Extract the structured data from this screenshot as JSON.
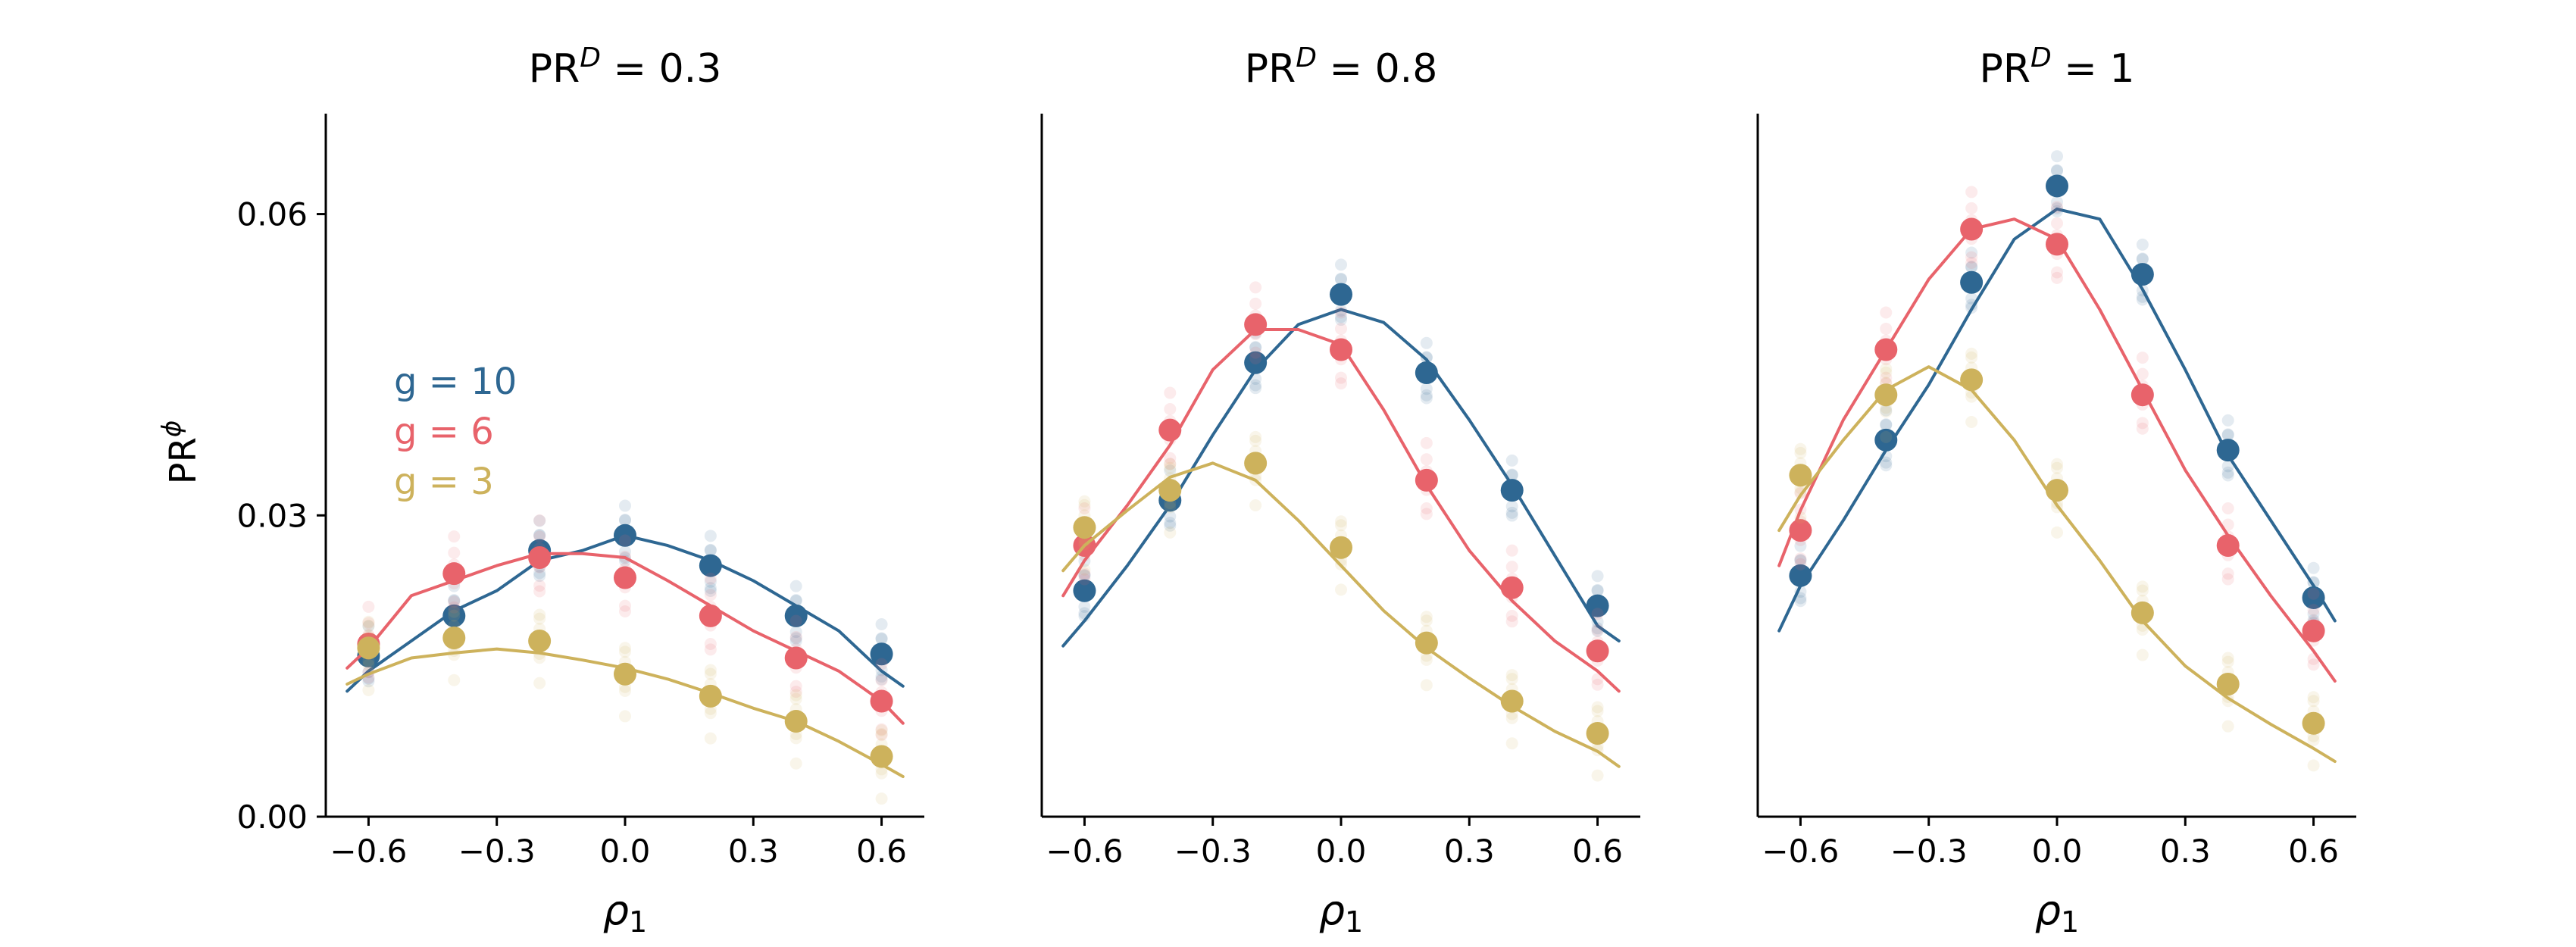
{
  "colors": {
    "g10": "#2e6792",
    "g6": "#e8636b",
    "g3": "#cdb25c"
  },
  "ylabel_base": "PR",
  "ylabel_sup": "ϕ",
  "legend": [
    {
      "label": "g = 10",
      "series": "g10"
    },
    {
      "label": "g = 6",
      "series": "g6"
    },
    {
      "label": "g = 3",
      "series": "g3"
    }
  ],
  "chart_data": [
    {
      "type": "scatter+line",
      "title_base": "PR",
      "title_sup": "D",
      "title_value": " = 0.3",
      "xlabel": "ρ1",
      "xlim": [
        -0.7,
        0.7
      ],
      "ylim": [
        0.0,
        0.07
      ],
      "xticks": [
        "-0.6",
        "-0.3",
        "0.0",
        "0.3",
        "0.6"
      ],
      "yticks": [
        "0.00",
        "0.03",
        "0.06"
      ],
      "x": [
        -0.6,
        -0.4,
        -0.2,
        0.0,
        0.2,
        0.4,
        0.6
      ],
      "series": [
        {
          "name": "g = 10",
          "key": "g10",
          "points": [
            0.016,
            0.02,
            0.0265,
            0.028,
            0.025,
            0.02,
            0.0162
          ],
          "line_x": [
            -0.65,
            -0.6,
            -0.5,
            -0.4,
            -0.3,
            -0.2,
            -0.1,
            0.0,
            0.1,
            0.2,
            0.3,
            0.4,
            0.5,
            0.6,
            0.65
          ],
          "line_y": [
            0.0125,
            0.0145,
            0.0175,
            0.0205,
            0.0225,
            0.0255,
            0.0265,
            0.028,
            0.027,
            0.0255,
            0.0235,
            0.021,
            0.0185,
            0.0145,
            0.013
          ]
        },
        {
          "name": "g = 6",
          "key": "g6",
          "points": [
            0.0172,
            0.0242,
            0.0258,
            0.0238,
            0.02,
            0.0158,
            0.0115
          ],
          "line_x": [
            -0.65,
            -0.6,
            -0.5,
            -0.4,
            -0.3,
            -0.2,
            -0.1,
            0.0,
            0.1,
            0.2,
            0.3,
            0.4,
            0.5,
            0.6,
            0.65
          ],
          "line_y": [
            0.0148,
            0.0168,
            0.022,
            0.0235,
            0.025,
            0.0262,
            0.0262,
            0.0258,
            0.0235,
            0.021,
            0.0185,
            0.0165,
            0.0145,
            0.0115,
            0.0093
          ]
        },
        {
          "name": "g = 3",
          "key": "g3",
          "points": [
            0.0168,
            0.0178,
            0.0175,
            0.0142,
            0.012,
            0.0095,
            0.006
          ],
          "line_x": [
            -0.65,
            -0.6,
            -0.5,
            -0.4,
            -0.3,
            -0.2,
            -0.1,
            0.0,
            0.1,
            0.2,
            0.3,
            0.4,
            0.5,
            0.6,
            0.65
          ],
          "line_y": [
            0.0132,
            0.0142,
            0.0158,
            0.0163,
            0.0167,
            0.0163,
            0.0156,
            0.0148,
            0.0137,
            0.0123,
            0.0108,
            0.0095,
            0.0075,
            0.0052,
            0.004
          ]
        }
      ]
    },
    {
      "type": "scatter+line",
      "title_base": "PR",
      "title_sup": "D",
      "title_value": " = 0.8",
      "xlabel": "ρ1",
      "xlim": [
        -0.7,
        0.7
      ],
      "ylim": [
        0.0,
        0.07
      ],
      "xticks": [
        "-0.6",
        "-0.3",
        "0.0",
        "0.3",
        "0.6"
      ],
      "yticks": [],
      "x": [
        -0.6,
        -0.4,
        -0.2,
        0.0,
        0.2,
        0.4,
        0.6
      ],
      "series": [
        {
          "name": "g = 10",
          "key": "g10",
          "points": [
            0.0225,
            0.0315,
            0.0452,
            0.052,
            0.0442,
            0.0325,
            0.021
          ],
          "line_x": [
            -0.65,
            -0.6,
            -0.5,
            -0.4,
            -0.3,
            -0.2,
            -0.1,
            0.0,
            0.1,
            0.2,
            0.3,
            0.4,
            0.5,
            0.6,
            0.65
          ],
          "line_y": [
            0.017,
            0.0195,
            0.025,
            0.031,
            0.038,
            0.0445,
            0.049,
            0.0505,
            0.0492,
            0.0455,
            0.0395,
            0.033,
            0.026,
            0.019,
            0.0175
          ]
        },
        {
          "name": "g = 6",
          "key": "g6",
          "points": [
            0.027,
            0.0385,
            0.049,
            0.0465,
            0.0335,
            0.0228,
            0.0165
          ],
          "line_x": [
            -0.65,
            -0.6,
            -0.5,
            -0.4,
            -0.3,
            -0.2,
            -0.1,
            0.0,
            0.1,
            0.2,
            0.3,
            0.4,
            0.5,
            0.6,
            0.65
          ],
          "line_y": [
            0.022,
            0.0255,
            0.031,
            0.037,
            0.0445,
            0.0485,
            0.0485,
            0.047,
            0.0405,
            0.033,
            0.0265,
            0.0215,
            0.0175,
            0.0145,
            0.0125
          ]
        },
        {
          "name": "g = 3",
          "key": "g3",
          "points": [
            0.0288,
            0.0325,
            0.0352,
            0.0268,
            0.0173,
            0.0115,
            0.0083
          ],
          "line_x": [
            -0.65,
            -0.6,
            -0.5,
            -0.4,
            -0.3,
            -0.2,
            -0.1,
            0.0,
            0.1,
            0.2,
            0.3,
            0.4,
            0.5,
            0.6,
            0.65
          ],
          "line_y": [
            0.0245,
            0.027,
            0.0305,
            0.0338,
            0.0352,
            0.0335,
            0.0295,
            0.025,
            0.0205,
            0.0168,
            0.0138,
            0.011,
            0.0085,
            0.0065,
            0.005
          ]
        }
      ]
    },
    {
      "type": "scatter+line",
      "title_base": "PR",
      "title_sup": "D",
      "title_value": " = 1",
      "xlabel": "ρ1",
      "xlim": [
        -0.7,
        0.7
      ],
      "ylim": [
        0.0,
        0.07
      ],
      "xticks": [
        "-0.6",
        "-0.3",
        "0.0",
        "0.3",
        "0.6"
      ],
      "yticks": [],
      "x": [
        -0.6,
        -0.4,
        -0.2,
        0.0,
        0.2,
        0.4,
        0.6
      ],
      "series": [
        {
          "name": "g = 10",
          "key": "g10",
          "points": [
            0.024,
            0.0375,
            0.0532,
            0.0628,
            0.054,
            0.0365,
            0.0218
          ],
          "line_x": [
            -0.65,
            -0.6,
            -0.5,
            -0.4,
            -0.3,
            -0.2,
            -0.1,
            0.0,
            0.1,
            0.2,
            0.3,
            0.4,
            0.5,
            0.6,
            0.65
          ],
          "line_y": [
            0.0185,
            0.023,
            0.0295,
            0.0365,
            0.043,
            0.0505,
            0.0575,
            0.0605,
            0.0595,
            0.0525,
            0.0445,
            0.036,
            0.0295,
            0.023,
            0.0195
          ]
        },
        {
          "name": "g = 6",
          "key": "g6",
          "points": [
            0.0285,
            0.0465,
            0.0585,
            0.057,
            0.042,
            0.027,
            0.0185
          ],
          "line_x": [
            -0.65,
            -0.6,
            -0.5,
            -0.4,
            -0.3,
            -0.2,
            -0.1,
            0.0,
            0.1,
            0.2,
            0.3,
            0.4,
            0.5,
            0.6,
            0.65
          ],
          "line_y": [
            0.025,
            0.0305,
            0.0395,
            0.0465,
            0.0535,
            0.0585,
            0.0595,
            0.0575,
            0.0505,
            0.0425,
            0.0345,
            0.028,
            0.022,
            0.0165,
            0.0135
          ]
        },
        {
          "name": "g = 3",
          "key": "g3",
          "points": [
            0.034,
            0.042,
            0.0435,
            0.0325,
            0.0203,
            0.0132,
            0.0093
          ],
          "line_x": [
            -0.65,
            -0.6,
            -0.5,
            -0.4,
            -0.3,
            -0.2,
            -0.1,
            0.0,
            0.1,
            0.2,
            0.3,
            0.4,
            0.5,
            0.6,
            0.65
          ],
          "line_y": [
            0.0285,
            0.032,
            0.0375,
            0.0425,
            0.0448,
            0.0425,
            0.0375,
            0.031,
            0.0255,
            0.0195,
            0.015,
            0.0118,
            0.0092,
            0.0068,
            0.0055
          ]
        }
      ]
    }
  ]
}
